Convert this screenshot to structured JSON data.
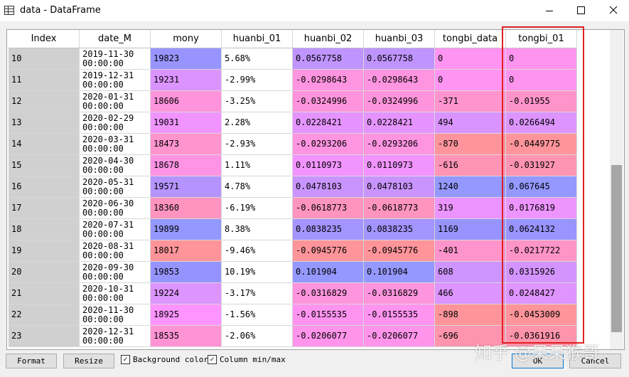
{
  "window": {
    "title": "data - DataFrame"
  },
  "table": {
    "columns": [
      "Index",
      "date_M",
      "mony",
      "huanbi_01",
      "huanbi_02",
      "huanbi_03",
      "tongbi_data",
      "tongbi_01"
    ],
    "rows": [
      [
        10,
        "2019-11-30 00:00:00",
        19823,
        "5.68%",
        0.0567758,
        0.0567758,
        0,
        0
      ],
      [
        11,
        "2019-12-31 00:00:00",
        19231,
        "-2.99%",
        -0.0298643,
        -0.0298643,
        0,
        0
      ],
      [
        12,
        "2020-01-31 00:00:00",
        18606,
        "-3.25%",
        -0.0324996,
        -0.0324996,
        -371,
        -0.01955
      ],
      [
        13,
        "2020-02-29 00:00:00",
        19031,
        "2.28%",
        0.0228421,
        0.0228421,
        494,
        0.0266494
      ],
      [
        14,
        "2020-03-31 00:00:00",
        18473,
        "-2.93%",
        -0.0293206,
        -0.0293206,
        -870,
        -0.0449775
      ],
      [
        15,
        "2020-04-30 00:00:00",
        18678,
        "1.11%",
        0.0110973,
        0.0110973,
        -616,
        -0.031927
      ],
      [
        16,
        "2020-05-31 00:00:00",
        19571,
        "4.78%",
        0.0478103,
        0.0478103,
        1240,
        0.067645
      ],
      [
        17,
        "2020-06-30 00:00:00",
        18360,
        "-6.19%",
        -0.0618773,
        -0.0618773,
        319,
        0.0176819
      ],
      [
        18,
        "2020-07-31 00:00:00",
        19899,
        "8.38%",
        0.0838235,
        0.0838235,
        1169,
        0.0624132
      ],
      [
        19,
        "2020-08-31 00:00:00",
        18017,
        "-9.46%",
        -0.0945776,
        -0.0945776,
        -401,
        -0.0217722
      ],
      [
        20,
        "2020-09-30 00:00:00",
        19853,
        "10.19%",
        0.101904,
        0.101904,
        608,
        0.0315926
      ],
      [
        21,
        "2020-10-31 00:00:00",
        19224,
        "-3.17%",
        -0.0316829,
        -0.0316829,
        466,
        0.0248427
      ],
      [
        22,
        "2020-11-30 00:00:00",
        18925,
        "-1.56%",
        -0.0155535,
        -0.0155535,
        -898,
        -0.0453009
      ],
      [
        23,
        "2020-12-31 00:00:00",
        18535,
        "-2.06%",
        -0.0206077,
        -0.0206077,
        -696,
        -0.0361916
      ]
    ]
  },
  "footer": {
    "buttons": [
      "Format",
      "Resize"
    ],
    "checkboxes": [
      {
        "label": "Background color",
        "checked": true
      },
      {
        "label": "Column min/max",
        "checked": true
      }
    ],
    "ok": "OK",
    "cancel": "Cancel"
  },
  "watermark": "知乎 @呆呆猴哥"
}
